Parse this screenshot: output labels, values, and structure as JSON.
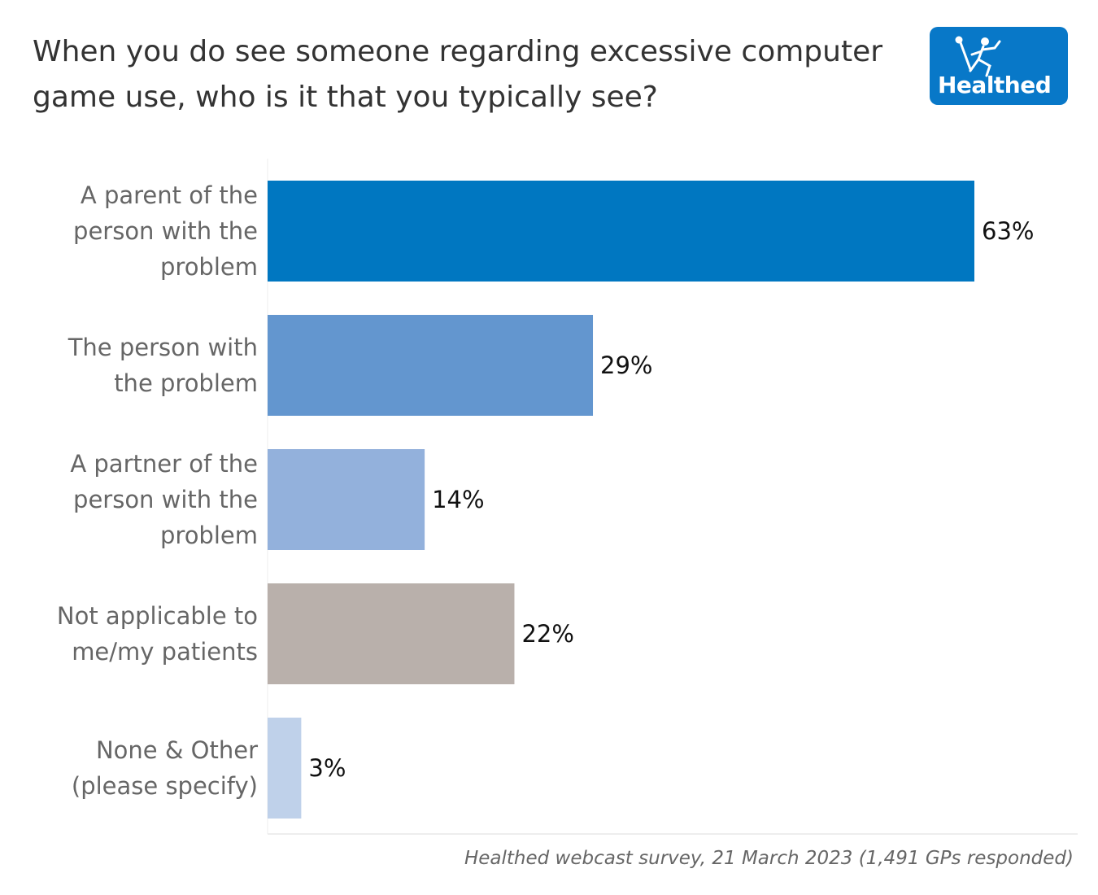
{
  "header": {
    "title": "When you do see someone regarding excessive computer game use, who is it that you typically see?",
    "logo_text": "Healthed",
    "logo_icon": "running-hermes-figure-icon",
    "logo_color": "#0878c8"
  },
  "footnote": "Healthed webcast survey, 21 March 2023 (1,491 GPs responded)",
  "chart_data": {
    "type": "bar",
    "orientation": "horizontal",
    "title": "When you do see someone regarding excessive computer game use, who is it that you typically see?",
    "xlabel": "",
    "ylabel": "",
    "xlim": [
      0,
      72
    ],
    "grid": false,
    "legend": "none",
    "categories": [
      [
        "A parent of the",
        "person with the",
        "problem"
      ],
      [
        "The person with",
        "the problem"
      ],
      [
        "A partner of the",
        "person with the",
        "problem"
      ],
      [
        "Not applicable to",
        "me/my patients"
      ],
      [
        "None & Other",
        "(please specify)"
      ]
    ],
    "values": [
      63,
      29,
      14,
      22,
      3
    ],
    "value_labels": [
      "63%",
      "29%",
      "14%",
      "22%",
      "3%"
    ],
    "colors": [
      "#0077c1",
      "#6396cf",
      "#93b1dc",
      "#b9b0ab",
      "#bfd1ea"
    ],
    "unit": "%"
  }
}
